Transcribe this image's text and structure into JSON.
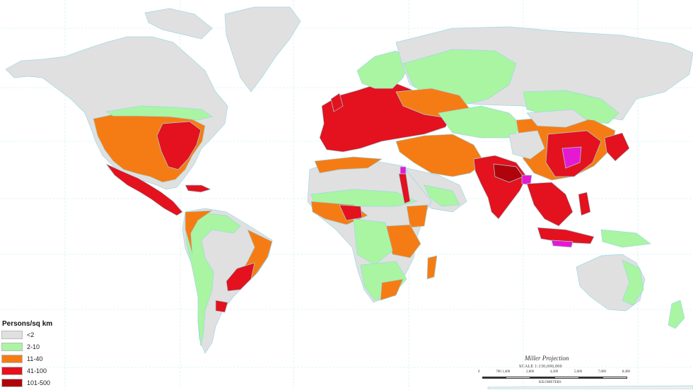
{
  "legend": {
    "title": "Persons/sq km",
    "items": [
      {
        "label": "<2",
        "color": "#e0e0e0"
      },
      {
        "label": "2-10",
        "color": "#a9f5a2"
      },
      {
        "label": "11-40",
        "color": "#f57c14"
      },
      {
        "label": "41-100",
        "color": "#e3121e"
      },
      {
        "label": "101-500",
        "color": "#b0040c"
      }
    ]
  },
  "scale": {
    "projection": "Miller Projection",
    "text": "SCALE 1:130,000,000",
    "ticks": [
      "0",
      "700 1,400",
      "2,800",
      "4,200",
      "5,600",
      "7,000",
      "8,400"
    ],
    "units": "KILOMETERS"
  },
  "colors": {
    "water": "#ffffff",
    "graticule": "#bfe9ef",
    "coast": "#9fd8e3",
    "over_500": "#e619d2"
  }
}
